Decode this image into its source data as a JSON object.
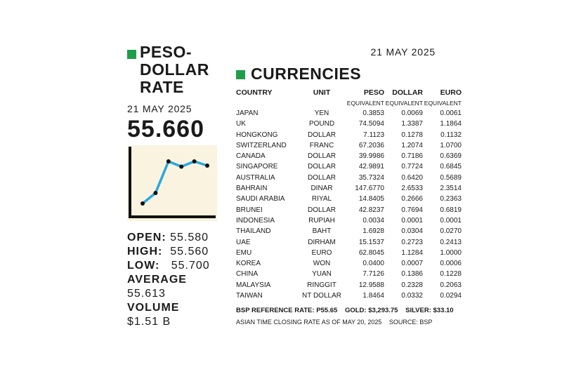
{
  "left": {
    "title_line1": "PESO-",
    "title_line2": "DOLLAR",
    "title_line3": "RATE",
    "date": "21 MAY 2025",
    "rate": "55.660",
    "stats": {
      "open_label": "OPEN:",
      "open_value": "55.580",
      "high_label": "HIGH:",
      "high_value": "55.560",
      "low_label": "LOW:",
      "low_value": "55.700",
      "average_label": "AVERAGE",
      "average_value": "55.613",
      "volume_label": "VOLUME",
      "volume_value": "$1.51 B"
    }
  },
  "right": {
    "date": "21 MAY 2025",
    "title": "CURRENCIES",
    "headers": {
      "country": "COUNTRY",
      "unit": "UNIT",
      "peso": "PESO",
      "dollar": "DOLLAR",
      "euro": "EURO"
    },
    "subheaders": {
      "peso": "EQUIVALENT",
      "dollar": "EQUIVALENT",
      "euro": "EQUIVALENT"
    },
    "footer_ref": "BSP REFERENCE RATE: P55.65",
    "footer_gold": "GOLD: $3,293.75",
    "footer_silver": "SILVER: $33.10",
    "footer_note": "ASIAN TIME CLOSING RATE AS OF MAY 20, 2025",
    "footer_source": "SOURCE: BSP"
  },
  "colors": {
    "accent_green": "#1f9e4a",
    "chart_line": "#29a8e0",
    "chart_bg": "#faf3e0"
  },
  "chart_data": [
    {
      "type": "line",
      "title": "",
      "values": [
        1,
        2,
        5,
        4.5,
        5,
        4.6
      ],
      "ylim": [
        0,
        6
      ]
    },
    {
      "type": "table",
      "columns": [
        "COUNTRY",
        "UNIT",
        "PESO EQUIVALENT",
        "DOLLAR EQUIVALENT",
        "EURO EQUIVALENT"
      ],
      "rows": [
        [
          "JAPAN",
          "YEN",
          "0.3853",
          "0.0069",
          "0.0061"
        ],
        [
          "UK",
          "POUND",
          "74.5094",
          "1.3387",
          "1.1864"
        ],
        [
          "HONGKONG",
          "DOLLAR",
          "7.1123",
          "0.1278",
          "0.1132"
        ],
        [
          "SWITZERLAND",
          "FRANC",
          "67.2036",
          "1.2074",
          "1.0700"
        ],
        [
          "CANADA",
          "DOLLAR",
          "39.9986",
          "0.7186",
          "0.6369"
        ],
        [
          "SINGAPORE",
          "DOLLAR",
          "42.9891",
          "0.7724",
          "0.6845"
        ],
        [
          "AUSTRALIA",
          "DOLLAR",
          "35.7324",
          "0.6420",
          "0.5689"
        ],
        [
          "BAHRAIN",
          "DINAR",
          "147.6770",
          "2.6533",
          "2.3514"
        ],
        [
          "SAUDI ARABIA",
          "RIYAL",
          "14.8405",
          "0.2666",
          "0.2363"
        ],
        [
          "BRUNEI",
          "DOLLAR",
          "42.8237",
          "0.7694",
          "0.6819"
        ],
        [
          "INDONESIA",
          "RUPIAH",
          "0.0034",
          "0.0001",
          "0.0001"
        ],
        [
          "THAILAND",
          "BAHT",
          "1.6928",
          "0.0304",
          "0.0270"
        ],
        [
          "UAE",
          "DIRHAM",
          "15.1537",
          "0.2723",
          "0.2413"
        ],
        [
          "EMU",
          "EURO",
          "62.8045",
          "1.1284",
          "1.0000"
        ],
        [
          "KOREA",
          "WON",
          "0.0400",
          "0.0007",
          "0.0006"
        ],
        [
          "CHINA",
          "YUAN",
          "7.7126",
          "0.1386",
          "0.1228"
        ],
        [
          "MALAYSIA",
          "RINGGIT",
          "12.9588",
          "0.2328",
          "0.2063"
        ],
        [
          "TAIWAN",
          "NT DOLLAR",
          "1.8464",
          "0.0332",
          "0.0294"
        ]
      ]
    }
  ]
}
